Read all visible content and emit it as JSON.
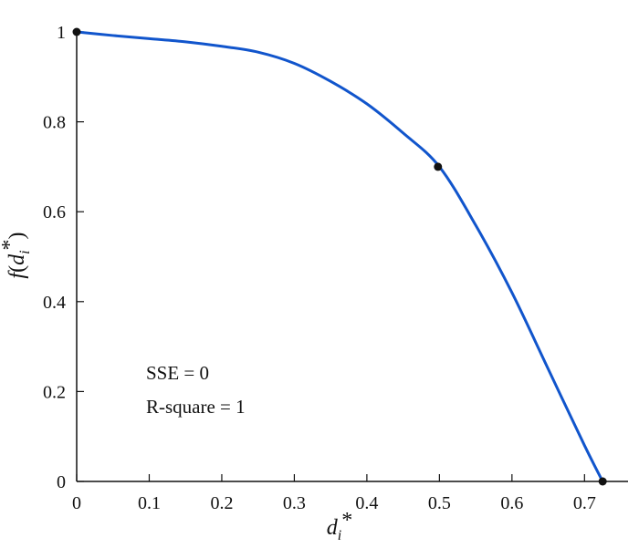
{
  "chart_data": {
    "type": "line",
    "title": "",
    "xlabel": {
      "main": "d",
      "sub": "i",
      "sup": "*"
    },
    "ylabel": {
      "func": "f",
      "main": "d",
      "sub": "i",
      "sup": "*"
    },
    "xlim": [
      0,
      0.76
    ],
    "ylim": [
      0,
      1
    ],
    "x_ticks": [
      0,
      0.1,
      0.2,
      0.3,
      0.4,
      0.5,
      0.6,
      0.7
    ],
    "x_tick_labels": [
      "0",
      "0.1",
      "0.2",
      "0.3",
      "0.4",
      "0.5",
      "0.6",
      "0.7"
    ],
    "y_ticks": [
      0,
      0.2,
      0.4,
      0.6,
      0.8,
      1
    ],
    "y_tick_labels": [
      "0",
      "0.2",
      "0.4",
      "0.6",
      "0.8",
      "1"
    ],
    "grid": false,
    "legend": "none",
    "series": [
      {
        "color": "#1155cc",
        "x": [
          0,
          0.05,
          0.1,
          0.15,
          0.2,
          0.25,
          0.3,
          0.35,
          0.4,
          0.45,
          0.5,
          0.55,
          0.6,
          0.65,
          0.7,
          0.725
        ],
        "y": [
          1,
          0.992,
          0.985,
          0.978,
          0.968,
          0.955,
          0.93,
          0.89,
          0.84,
          0.775,
          0.7,
          0.57,
          0.42,
          0.25,
          0.08,
          0
        ]
      }
    ],
    "markers": [
      {
        "x": 0,
        "y": 1
      },
      {
        "x": 0.498,
        "y": 0.7
      },
      {
        "x": 0.725,
        "y": 0
      }
    ],
    "annotations": [
      "SSE = 0",
      "R-square = 1"
    ]
  },
  "colors": {
    "line": "#1155cc",
    "marker": "#111111",
    "axis": "#111111"
  }
}
